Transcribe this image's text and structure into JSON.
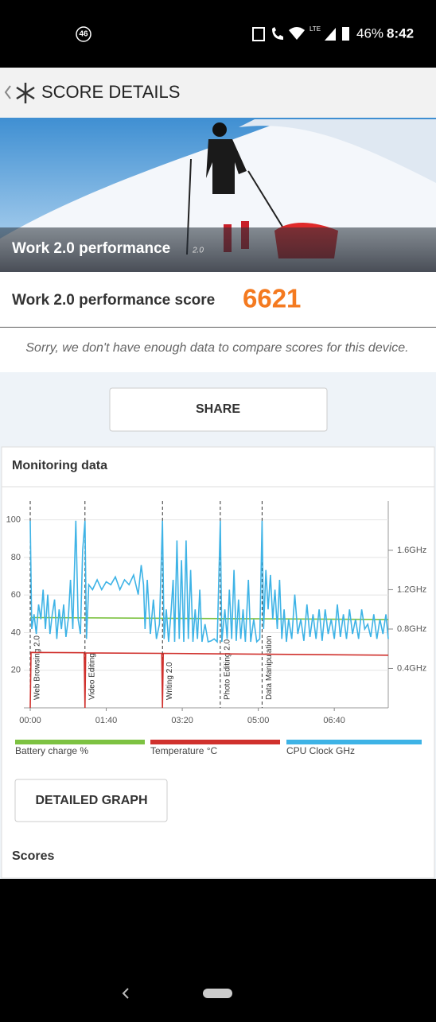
{
  "status_bar": {
    "badge": "46",
    "network": "LTE",
    "battery": "46%",
    "time": "8:42"
  },
  "header": {
    "title": "SCORE DETAILS"
  },
  "hero": {
    "title": "Work 2.0 performance",
    "version": "2.0"
  },
  "score": {
    "label": "Work 2.0 performance score",
    "value": "6621"
  },
  "note": "Sorry, we don't have enough data to compare scores for this device.",
  "share_button": "SHARE",
  "monitoring": {
    "title": "Monitoring data",
    "detail_button": "DETAILED GRAPH",
    "scores_title": "Scores"
  },
  "chart_data": {
    "type": "line",
    "xlim": [
      0,
      471
    ],
    "xticks": [
      {
        "value": 0,
        "label": "00:00"
      },
      {
        "value": 100,
        "label": "01:40"
      },
      {
        "value": 200,
        "label": "03:20"
      },
      {
        "value": 300,
        "label": "05:00"
      },
      {
        "value": 400,
        "label": "06:40"
      }
    ],
    "ylim": [
      0,
      110
    ],
    "yticks": [
      20,
      40,
      60,
      80,
      100
    ],
    "y2lim": [
      0,
      2.1
    ],
    "y2ticks": [
      {
        "value": 0.4,
        "label": "0.4GHz"
      },
      {
        "value": 0.8,
        "label": "0.8GHz"
      },
      {
        "value": 1.2,
        "label": "1.2GHz"
      },
      {
        "value": 1.6,
        "label": "1.6GHz"
      }
    ],
    "grid": true,
    "annotations": [
      {
        "x": 0,
        "text": "Web Browsing 2.0"
      },
      {
        "x": 72,
        "text": "Video Editing"
      },
      {
        "x": 174,
        "text": "Writing 2.0"
      },
      {
        "x": 250,
        "text": "Photo Editing 2.0"
      },
      {
        "x": 305,
        "text": "Data Manipulation"
      }
    ],
    "series": [
      {
        "name": "Battery charge %",
        "color": "#7dc242",
        "x": [
          0,
          471
        ],
        "values": [
          48,
          47
        ]
      },
      {
        "name": "Temperature °C",
        "color": "#d0312d",
        "x": [
          0,
          1,
          71,
          72,
          73,
          173,
          174,
          175,
          471
        ],
        "values": [
          0,
          29.5,
          29.3,
          0,
          29.2,
          29,
          0,
          29,
          28
        ]
      },
      {
        "name": "CPU Clock GHz",
        "color": "#3eb3e6",
        "axis": "y2",
        "x": [
          0,
          2,
          5,
          8,
          11,
          14,
          17,
          20,
          23,
          26,
          29,
          32,
          35,
          38,
          41,
          44,
          47,
          50,
          53,
          56,
          60,
          63,
          66,
          69,
          72,
          74,
          77,
          82,
          88,
          94,
          100,
          106,
          112,
          118,
          124,
          130,
          136,
          142,
          146,
          149,
          151,
          154,
          158,
          162,
          166,
          170,
          174,
          176,
          179,
          182,
          185,
          188,
          190,
          193,
          196,
          199,
          202,
          205,
          208,
          211,
          214,
          217,
          220,
          223,
          226,
          230,
          234,
          238,
          242,
          246,
          250,
          252,
          256,
          259,
          262,
          265,
          268,
          271,
          274,
          277,
          280,
          283,
          287,
          290,
          294,
          298,
          302,
          305,
          307,
          310,
          313,
          316,
          319,
          322,
          325,
          328,
          331,
          334,
          337,
          340,
          344,
          348,
          352,
          356,
          360,
          364,
          368,
          372,
          376,
          380,
          384,
          388,
          392,
          396,
          400,
          404,
          408,
          412,
          416,
          420,
          424,
          428,
          432,
          436,
          440,
          444,
          448,
          452,
          456,
          460,
          464,
          468,
          471
        ],
        "values": [
          1.9,
          0.8,
          0.95,
          0.75,
          1.05,
          0.9,
          1.2,
          0.8,
          1.15,
          0.75,
          0.95,
          1.1,
          0.7,
          1.0,
          0.8,
          1.05,
          0.72,
          0.9,
          1.3,
          0.8,
          1.9,
          0.9,
          0.75,
          1.6,
          1.9,
          0.7,
          1.25,
          1.2,
          1.3,
          1.2,
          1.28,
          1.25,
          1.33,
          1.2,
          1.3,
          1.25,
          1.35,
          1.15,
          1.45,
          1.25,
          0.8,
          1.3,
          0.75,
          1.1,
          0.7,
          0.85,
          1.9,
          0.7,
          1.0,
          0.67,
          0.95,
          1.3,
          0.67,
          1.7,
          0.7,
          1.5,
          0.67,
          1.7,
          0.7,
          1.4,
          0.67,
          1.0,
          0.7,
          1.2,
          0.67,
          0.85,
          0.67,
          0.68,
          0.7,
          0.67,
          1.9,
          0.67,
          1.0,
          0.7,
          1.2,
          0.7,
          1.4,
          0.68,
          1.1,
          0.7,
          1.0,
          0.67,
          1.3,
          0.67,
          0.9,
          0.67,
          0.7,
          1.9,
          0.8,
          1.4,
          1.0,
          1.35,
          0.9,
          1.2,
          0.8,
          1.3,
          0.7,
          1.0,
          0.67,
          0.9,
          0.7,
          1.15,
          0.75,
          0.9,
          0.68,
          1.05,
          0.72,
          0.95,
          0.7,
          1.0,
          0.68,
          1.0,
          0.75,
          0.9,
          0.7,
          1.05,
          0.72,
          0.95,
          0.7,
          1.0,
          0.75,
          0.9,
          0.7,
          1.0,
          0.8,
          0.85,
          0.72,
          0.95,
          0.7,
          0.9,
          0.75,
          0.95,
          0.7
        ]
      }
    ]
  }
}
